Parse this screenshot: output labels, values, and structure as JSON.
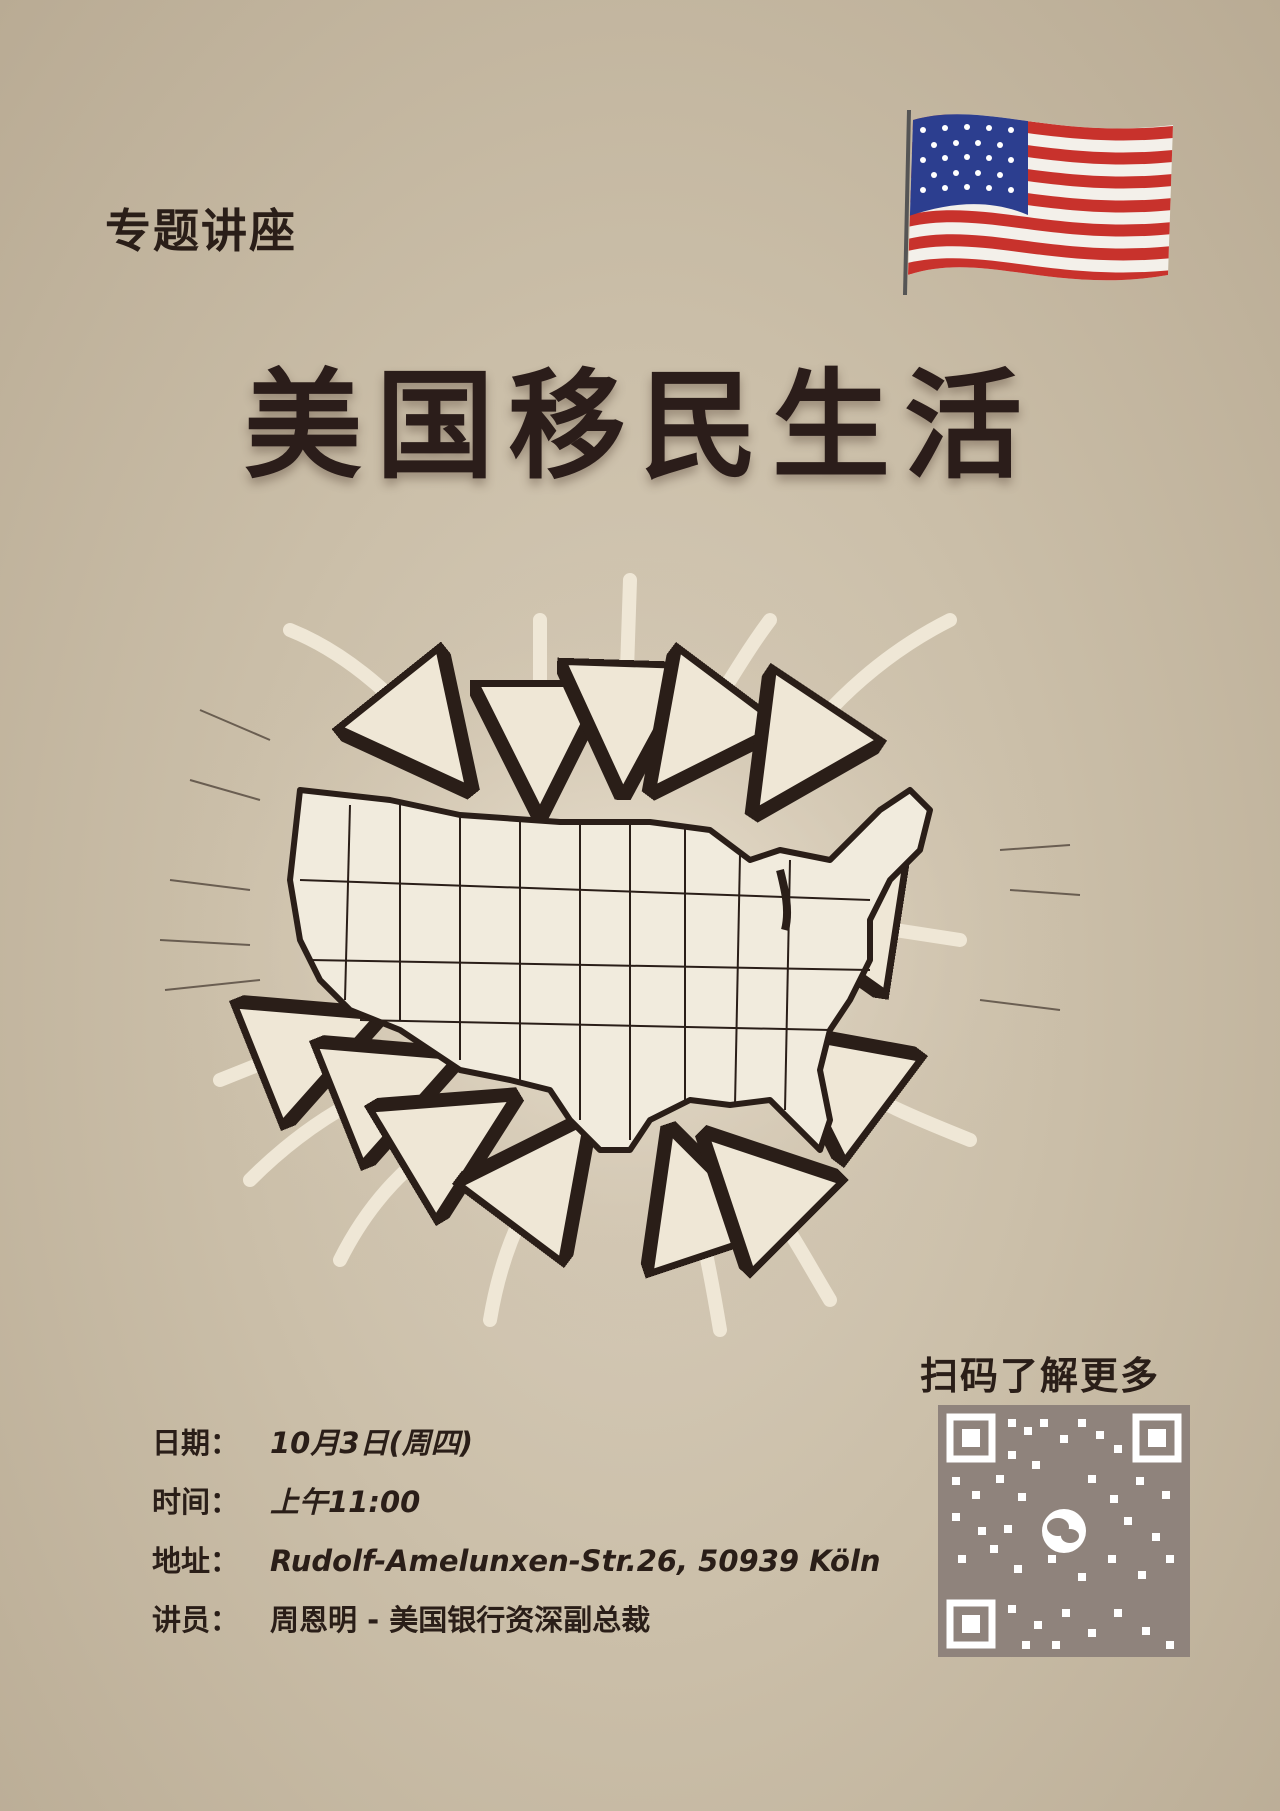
{
  "poster": {
    "subtitle": "专题讲座",
    "title": "美国移民生活",
    "flag_icon": "us-flag-icon",
    "map_icon": "us-map-with-inward-arrows-icon"
  },
  "details": {
    "date_label": "日期：",
    "date_value": "10月3日(周四)",
    "time_label": "时间：",
    "time_value": "上午11:00",
    "address_label": "地址：",
    "address_value": "Rudolf-Amelunxen-Str.26, 50939 Köln",
    "speaker_label": "讲员：",
    "speaker_value": "周恩明 - 美国银行资深副总裁"
  },
  "qr": {
    "label": "扫码了解更多",
    "icon": "wechat-qr-icon"
  },
  "colors": {
    "text_dark": "#2a1e18",
    "paper": "#cbbfa9",
    "flag_red": "#c8322c",
    "flag_blue": "#2c3e8f",
    "qr_bg": "#8f837c"
  }
}
